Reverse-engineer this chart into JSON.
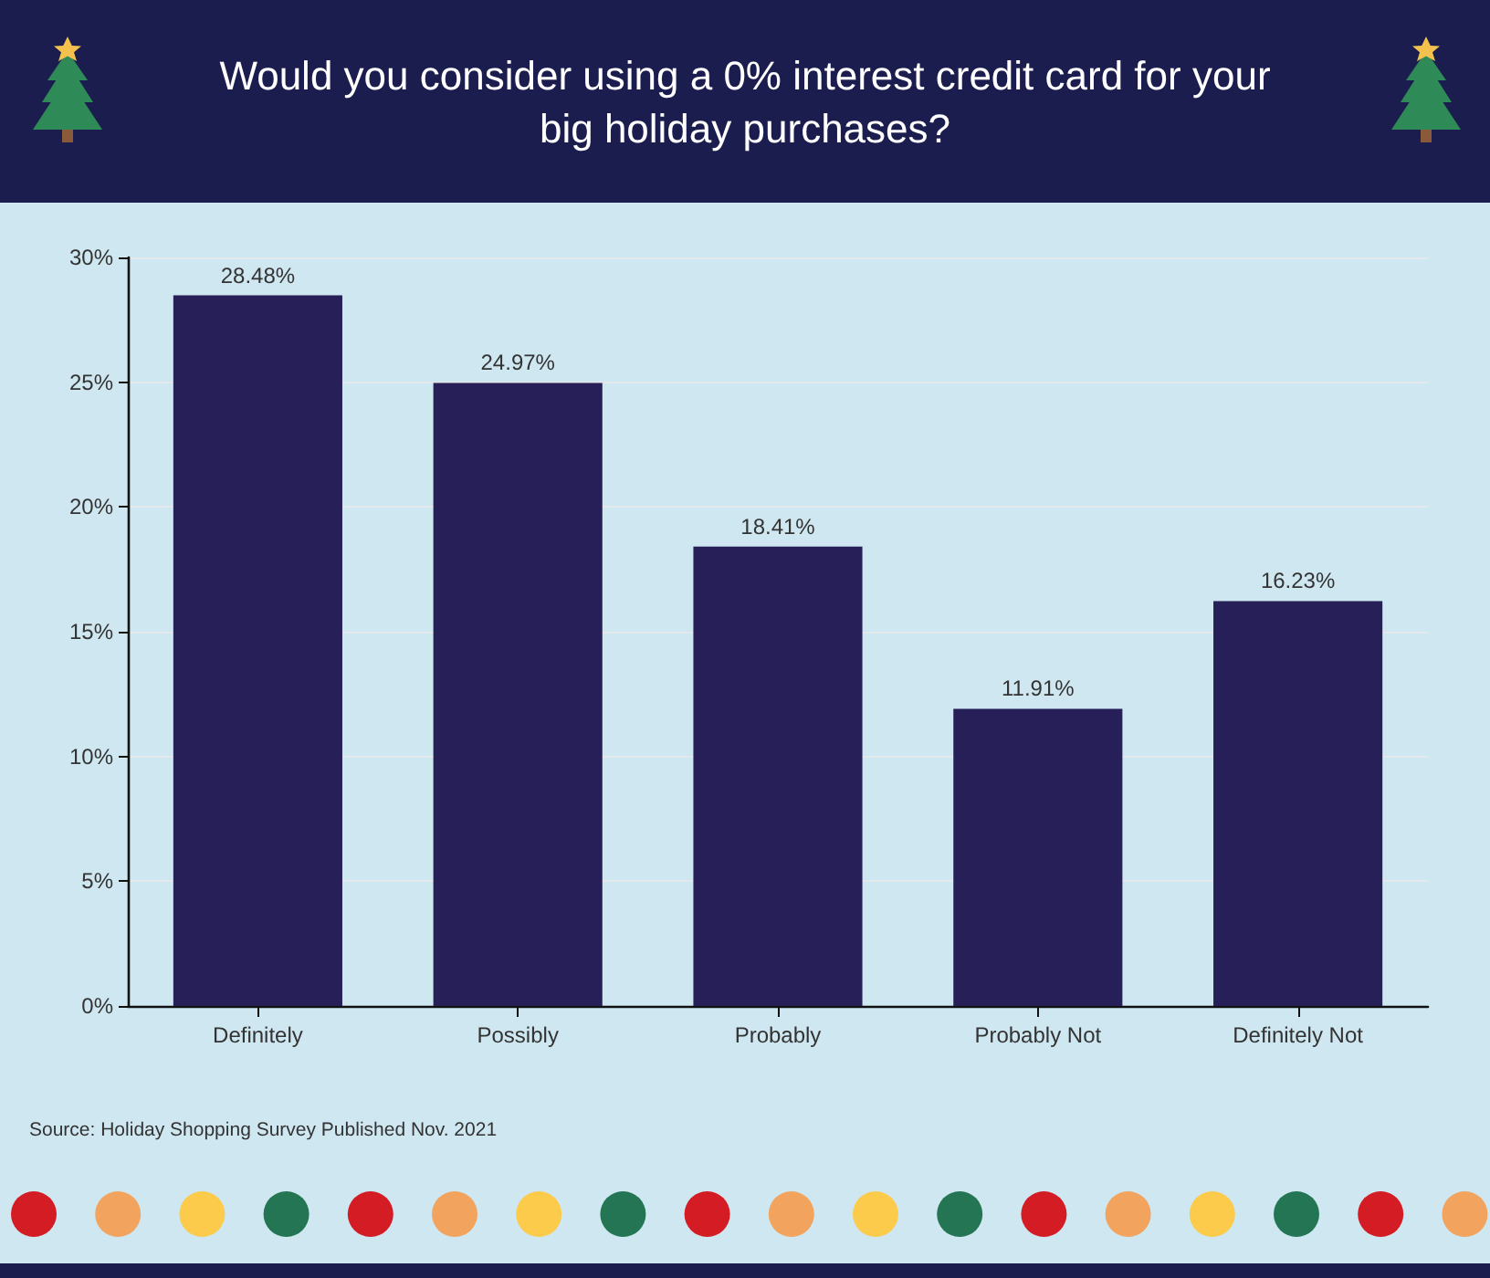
{
  "chart_data": {
    "type": "bar",
    "title": "Would you consider using a 0% interest credit card for your big holiday purchases?",
    "categories": [
      "Definitely",
      "Possibly",
      "Probably",
      "Probably Not",
      "Definitely Not"
    ],
    "values": [
      28.48,
      24.97,
      18.41,
      11.91,
      16.23
    ],
    "value_labels": [
      "28.48%",
      "24.97%",
      "18.41%",
      "11.91%",
      "16.23%"
    ],
    "color": "#271f57",
    "ylim": [
      0,
      30
    ],
    "yticks": [
      {
        "value": 0,
        "label": "0%"
      },
      {
        "value": 5,
        "label": "5%"
      },
      {
        "value": 10,
        "label": "10%"
      },
      {
        "value": 15,
        "label": "15%"
      },
      {
        "value": 20,
        "label": "20%"
      },
      {
        "value": 25,
        "label": "25%"
      },
      {
        "value": 30,
        "label": "30%"
      }
    ],
    "grid": "y",
    "annotations": [
      "Source: Holiday Shopping Survey Published Nov. 2021"
    ]
  }
}
